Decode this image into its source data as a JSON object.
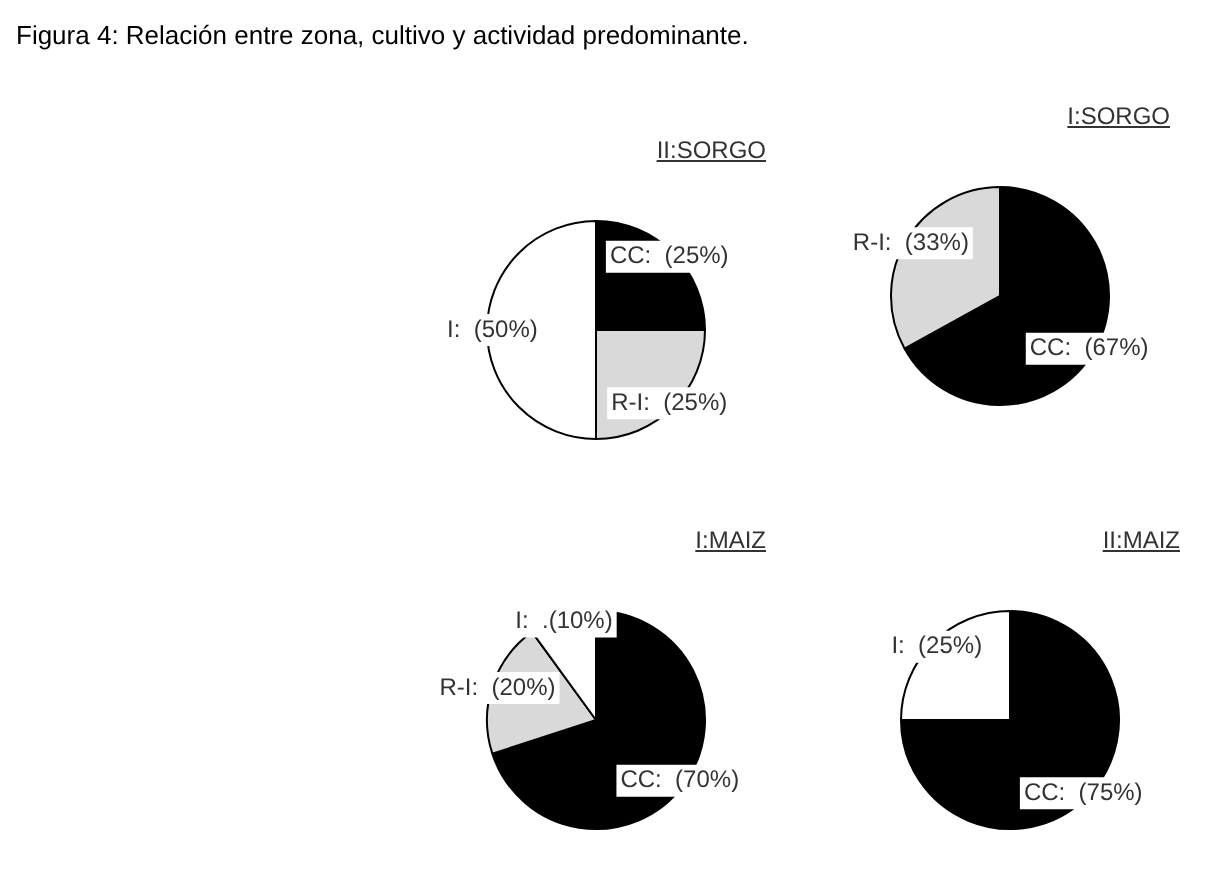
{
  "chart_data": [
    {
      "type": "pie",
      "title": "II:SORGO",
      "annotations": [
        "Figura 4: Relación entre zona, cultivo y actividad predominante."
      ],
      "categories": [
        "CC",
        "R-I",
        "I"
      ],
      "values": [
        25,
        25,
        50
      ],
      "value_labels": [
        "(25%)",
        "(25%)",
        "(50%)"
      ],
      "colors": [
        "#000000",
        "#d9d9d9",
        "#ffffff"
      ]
    },
    {
      "type": "pie",
      "title": "I:SORGO",
      "categories": [
        "CC",
        "R-I"
      ],
      "values": [
        67,
        33
      ],
      "value_labels": [
        "(67%)",
        "(33%)"
      ],
      "colors": [
        "#000000",
        "#d9d9d9"
      ]
    },
    {
      "type": "pie",
      "title": "I:MAIZ",
      "categories": [
        "CC",
        "R-I",
        "I"
      ],
      "values": [
        70,
        20,
        10
      ],
      "value_labels": [
        "(70%)",
        "(20%)",
        ".(10%)"
      ],
      "colors": [
        "#000000",
        "#d9d9d9",
        "#ffffff"
      ]
    },
    {
      "type": "pie",
      "title": "II:MAIZ",
      "categories": [
        "CC",
        "I"
      ],
      "values": [
        75,
        25
      ],
      "value_labels": [
        "(75%)",
        "(25%)"
      ],
      "colors": [
        "#000000",
        "#ffffff"
      ]
    }
  ]
}
